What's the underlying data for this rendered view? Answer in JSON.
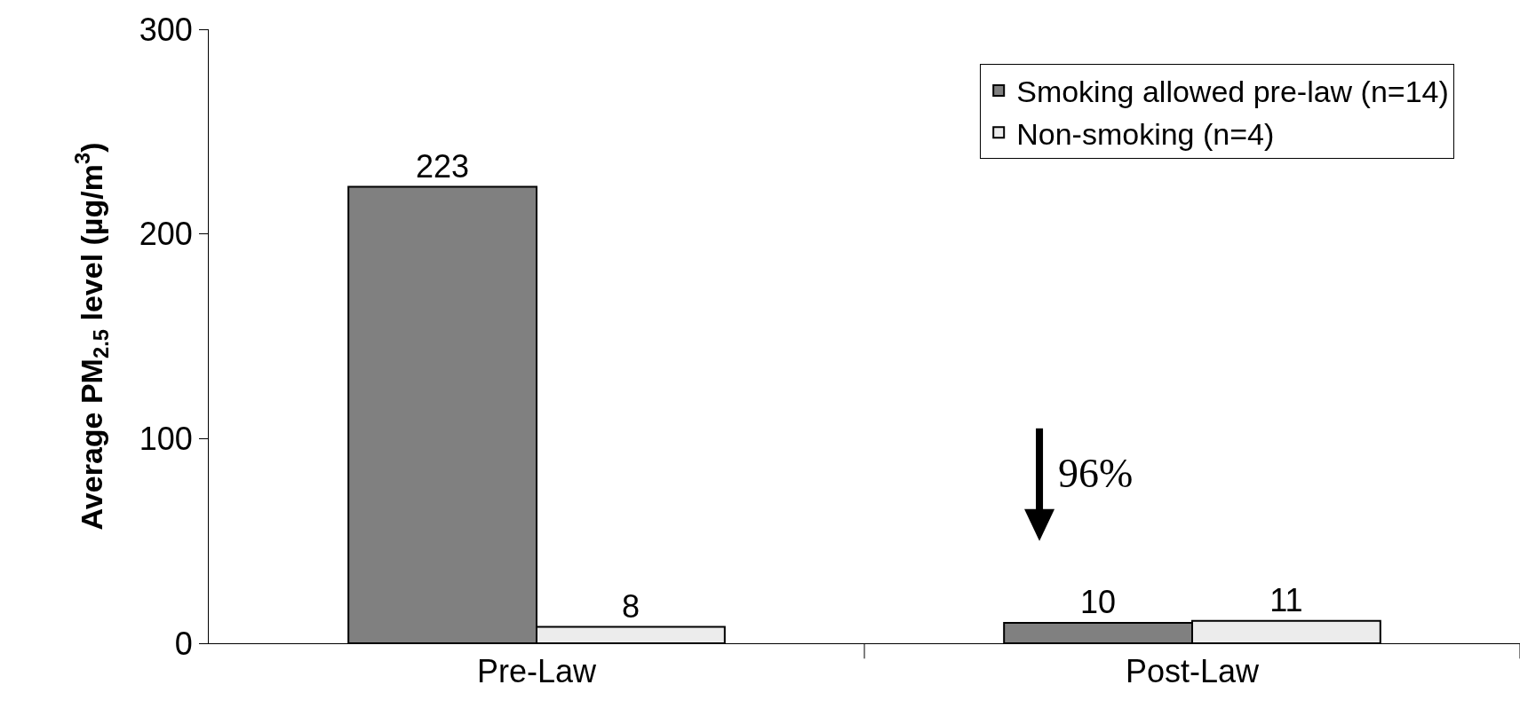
{
  "chart_data": {
    "type": "bar",
    "categories": [
      "Pre-Law",
      "Post-Law"
    ],
    "ylabel": "Average PM$_{2.5}$ level (µg/m$^{3}$)",
    "series": [
      {
        "name": "Smoking allowed pre-law (n=14)",
        "color": "#808080",
        "values": [
          223,
          10
        ]
      },
      {
        "name": "Non-smoking (n=4)",
        "color": "#ececec",
        "values": [
          8,
          11
        ]
      }
    ],
    "ylim": [
      0,
      300
    ],
    "yticks": [
      0,
      100,
      200,
      300
    ],
    "grid": false,
    "legend": "top right",
    "data_labels": true,
    "annotations": [
      "96%"
    ]
  }
}
